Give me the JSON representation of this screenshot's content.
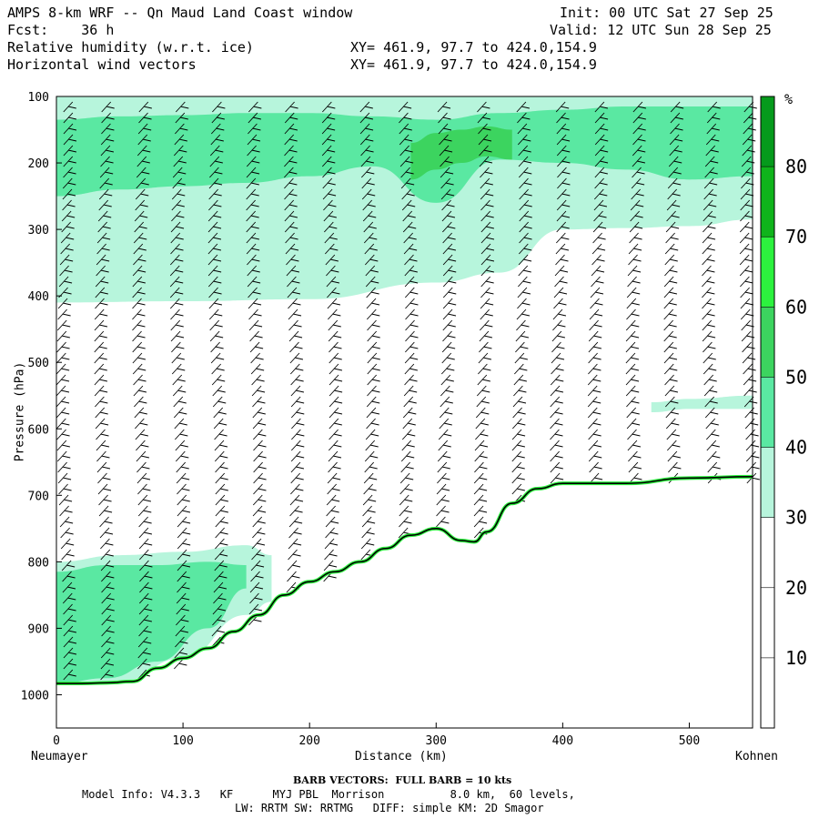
{
  "header": {
    "title": "AMPS 8-km WRF -- Qn Maud Land Coast window",
    "init": "Init: 00 UTC Sat 27 Sep 25",
    "forecast": "Fcst:    36 h",
    "valid": "Valid: 12 UTC Sun 28 Sep 25",
    "field1": "Relative humidity (w.r.t. ice)",
    "field1_xy": "XY= 461.9, 97.7 to 424.0,154.9",
    "field2": "Horizontal wind vectors",
    "field2_xy": "XY= 461.9, 97.7 to 424.0,154.9"
  },
  "chart_data": {
    "type": "heatmap",
    "title": "Relative humidity (w.r.t. ice) cross-section with horizontal wind vectors",
    "xlabel": "Distance (km)",
    "ylabel": "Pressure (hPa)",
    "xlim": [
      0,
      550
    ],
    "ylim": [
      1050,
      100
    ],
    "xticks": [
      0,
      100,
      200,
      300,
      400,
      500
    ],
    "yticks": [
      100,
      200,
      300,
      400,
      500,
      600,
      700,
      800,
      900,
      1000
    ],
    "left_endpoint": "Neumayer",
    "right_endpoint": "Kohnen",
    "colorbar": {
      "unit": "%",
      "levels": [
        10,
        20,
        30,
        40,
        50,
        60,
        70,
        80
      ],
      "colors": [
        "#ffffff",
        "#ffffff",
        "#ffffff",
        "#b7f5dc",
        "#5ae8a2",
        "#3cd45f",
        "#2cf23e",
        "#0fb41b",
        "#059a1c"
      ]
    },
    "terrain_surface": {
      "distance_km": [
        0,
        20,
        40,
        60,
        80,
        100,
        120,
        140,
        160,
        180,
        200,
        220,
        240,
        260,
        280,
        300,
        320,
        330,
        340,
        360,
        380,
        400,
        420,
        450,
        500,
        550
      ],
      "pressure_hpa": [
        983,
        983,
        982,
        980,
        960,
        945,
        930,
        905,
        880,
        850,
        830,
        815,
        800,
        780,
        760,
        750,
        768,
        770,
        755,
        712,
        690,
        682,
        682,
        682,
        674,
        672
      ]
    },
    "rh_regions": [
      {
        "level": 35,
        "distance_km": [
          0,
          100,
          200,
          300,
          350,
          400,
          450,
          500,
          550
        ],
        "pressure_top": [
          100,
          100,
          100,
          100,
          100,
          100,
          100,
          100,
          100
        ],
        "pressure_bottom": [
          410,
          408,
          405,
          380,
          365,
          300,
          298,
          295,
          285
        ]
      },
      {
        "level": 45,
        "distance_km": [
          0,
          50,
          100,
          150,
          200,
          250,
          300,
          350,
          400,
          450,
          500,
          550
        ],
        "pressure_top": [
          135,
          130,
          128,
          125,
          125,
          130,
          135,
          125,
          120,
          115,
          115,
          115
        ],
        "pressure_bottom": [
          250,
          240,
          235,
          230,
          220,
          205,
          260,
          195,
          200,
          210,
          225,
          220
        ]
      },
      {
        "level": 55,
        "distance_km": [
          280,
          300,
          320,
          340,
          360
        ],
        "pressure_top": [
          170,
          155,
          150,
          145,
          150
        ],
        "pressure_bottom": [
          225,
          210,
          200,
          190,
          195
        ]
      },
      {
        "level": 35,
        "distance_km": [
          0,
          50,
          100,
          150,
          170
        ],
        "pressure_top": [
          800,
          790,
          785,
          775,
          790
        ],
        "pressure_bottom": [
          983,
          980,
          945,
          880,
          860
        ]
      },
      {
        "level": 45,
        "distance_km": [
          0,
          40,
          80,
          120,
          150
        ],
        "pressure_top": [
          815,
          805,
          805,
          800,
          805
        ],
        "pressure_bottom": [
          983,
          975,
          950,
          900,
          840
        ]
      },
      {
        "level": 35,
        "distance_km": [
          470,
          500,
          550
        ],
        "pressure_top": [
          560,
          555,
          550
        ],
        "pressure_bottom": [
          575,
          570,
          570
        ]
      }
    ],
    "wind_vectors": {
      "note": "Wind barbs; full barb = 10 kts",
      "column_distance_km": [
        0,
        30,
        60,
        90,
        120,
        150,
        180,
        210,
        240,
        270,
        300,
        330,
        360,
        390,
        420,
        450,
        480,
        510,
        540
      ]
    }
  },
  "footer": {
    "barb_note": "BARB VECTORS:  FULL BARB = 10 kts",
    "model_info": "Model Info: V4.3.3   KF      MYJ PBL  Morrison          8.0 km,  60 levels,",
    "model_info2": "LW: RRTM SW: RRTMG   DIFF: simple KM: 2D Smagor"
  }
}
